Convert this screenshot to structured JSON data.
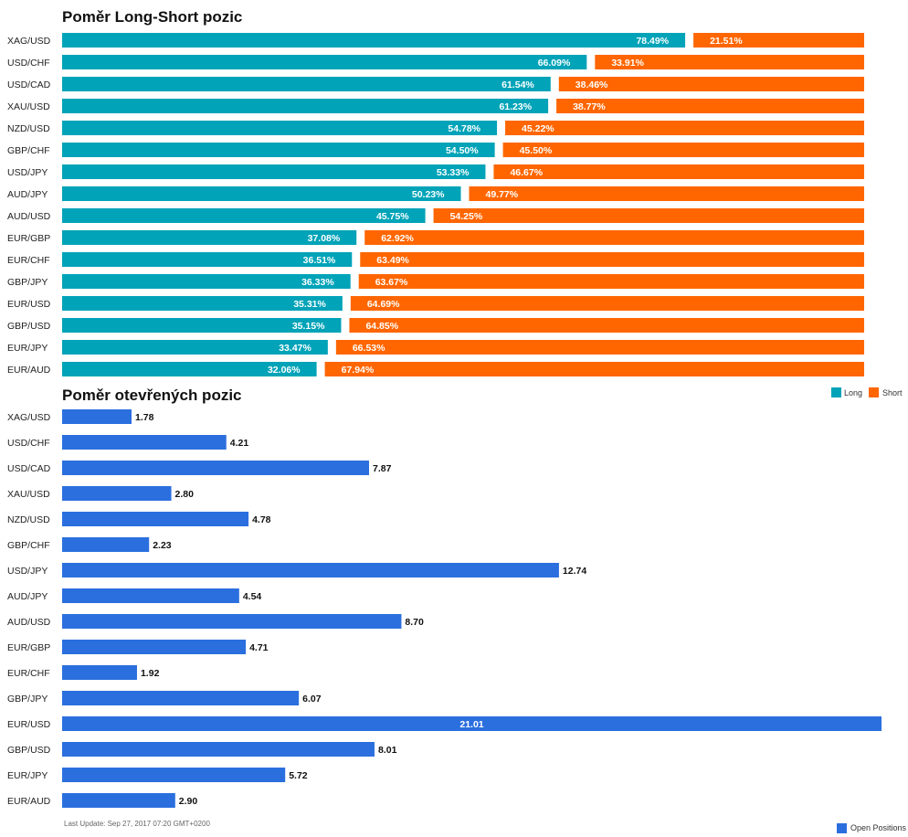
{
  "chart_data": [
    {
      "type": "bar",
      "orientation": "horizontal",
      "stacked": true,
      "title": "Poměr Long-Short pozic",
      "categories": [
        "XAG/USD",
        "USD/CHF",
        "USD/CAD",
        "XAU/USD",
        "NZD/USD",
        "GBP/CHF",
        "USD/JPY",
        "AUD/JPY",
        "AUD/USD",
        "EUR/GBP",
        "EUR/CHF",
        "GBP/JPY",
        "EUR/USD",
        "GBP/USD",
        "EUR/JPY",
        "EUR/AUD"
      ],
      "series": [
        {
          "name": "Long",
          "color": "#00a3b8",
          "values": [
            78.49,
            66.09,
            61.54,
            61.23,
            54.78,
            54.5,
            53.33,
            50.23,
            45.75,
            37.08,
            36.51,
            36.33,
            35.31,
            35.15,
            33.47,
            32.06
          ]
        },
        {
          "name": "Short",
          "color": "#ff6600",
          "values": [
            21.51,
            33.91,
            38.46,
            38.77,
            45.22,
            45.5,
            46.67,
            49.77,
            54.25,
            62.92,
            63.49,
            63.67,
            64.69,
            64.85,
            66.53,
            67.94
          ]
        }
      ],
      "value_suffix": "%",
      "legend_position": "bottom-right",
      "xlim": [
        0,
        100
      ],
      "grid": false
    },
    {
      "type": "bar",
      "orientation": "horizontal",
      "title": "Poměr otevřených pozic",
      "categories": [
        "XAG/USD",
        "USD/CHF",
        "USD/CAD",
        "XAU/USD",
        "NZD/USD",
        "GBP/CHF",
        "USD/JPY",
        "AUD/JPY",
        "AUD/USD",
        "EUR/GBP",
        "EUR/CHF",
        "GBP/JPY",
        "EUR/USD",
        "GBP/USD",
        "EUR/JPY",
        "EUR/AUD"
      ],
      "series": [
        {
          "name": "Open Positions",
          "color": "#2b6fde",
          "values": [
            1.78,
            4.21,
            7.87,
            2.8,
            4.78,
            2.23,
            12.74,
            4.54,
            8.7,
            4.71,
            1.92,
            6.07,
            21.01,
            8.01,
            5.72,
            2.9
          ]
        }
      ],
      "legend_position": "bottom-right",
      "grid": false
    }
  ],
  "footer": {
    "last_update": "Last Update: Sep 27, 2017 07:20 GMT+0200"
  }
}
